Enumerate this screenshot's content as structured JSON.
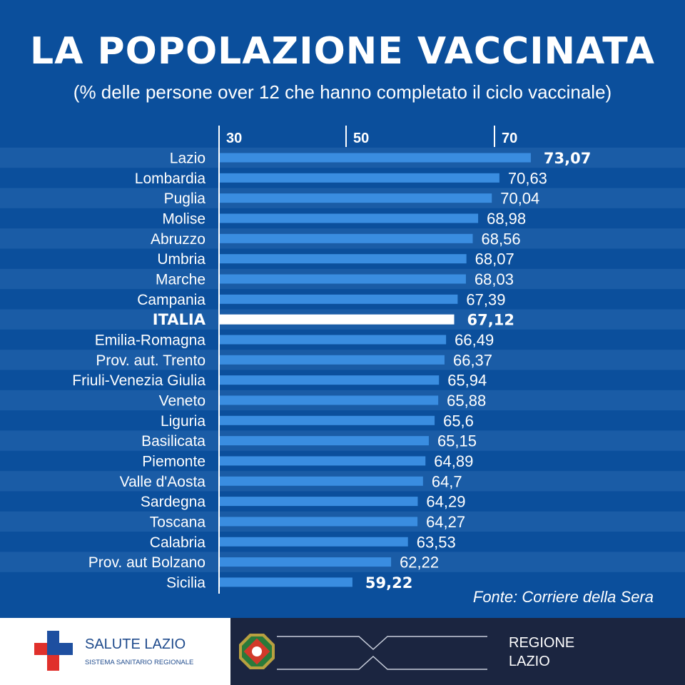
{
  "chart_data": {
    "type": "bar",
    "orientation": "horizontal",
    "title": "LA POPOLAZIONE VACCINATA",
    "subtitle": "(% delle persone over 12 che hanno completato il ciclo vaccinale)",
    "xlabel": "",
    "ylabel": "",
    "ticks": [
      "30",
      "50",
      "70"
    ],
    "categories": [
      "Lazio",
      "Lombardia",
      "Puglia",
      "Molise",
      "Abruzzo",
      "Umbria",
      "Marche",
      "Campania",
      "ITALIA",
      "Emilia-Romagna",
      "Prov. aut. Trento",
      "Friuli-Venezia Giulia",
      "Veneto",
      "Liguria",
      "Basilicata",
      "Piemonte",
      "Valle d'Aosta",
      "Sardegna",
      "Toscana",
      "Calabria",
      "Prov. aut Bolzano",
      "Sicilia"
    ],
    "values": [
      73.07,
      70.63,
      70.04,
      68.98,
      68.56,
      68.07,
      68.03,
      67.39,
      67.12,
      66.49,
      66.37,
      65.94,
      65.88,
      65.6,
      65.15,
      64.89,
      64.7,
      64.29,
      64.27,
      63.53,
      62.22,
      59.22
    ],
    "value_labels": [
      "73,07",
      "70,63",
      "70,04",
      "68,98",
      "68,56",
      "68,07",
      "68,03",
      "67,39",
      "67,12",
      "66,49",
      "66,37",
      "65,94",
      "65,88",
      "65,6",
      "65,15",
      "64,89",
      "64,7",
      "64,29",
      "64,27",
      "63,53",
      "62,22",
      "59,22"
    ],
    "highlighted": [
      "Lazio",
      "ITALIA",
      "Sicilia"
    ],
    "source": "Fonte: Corriere della Sera"
  },
  "colors": {
    "background": "#0b4f9c",
    "stripe": "#1a5ca6",
    "bar": "#3a8de0",
    "italia_bar": "#ffffff"
  },
  "footer": {
    "left_title": "SALUTE LAZIO",
    "left_subtitle": "SISTEMA SANITARIO REGIONALE",
    "right_line1": "REGIONE",
    "right_line2": "LAZIO"
  }
}
